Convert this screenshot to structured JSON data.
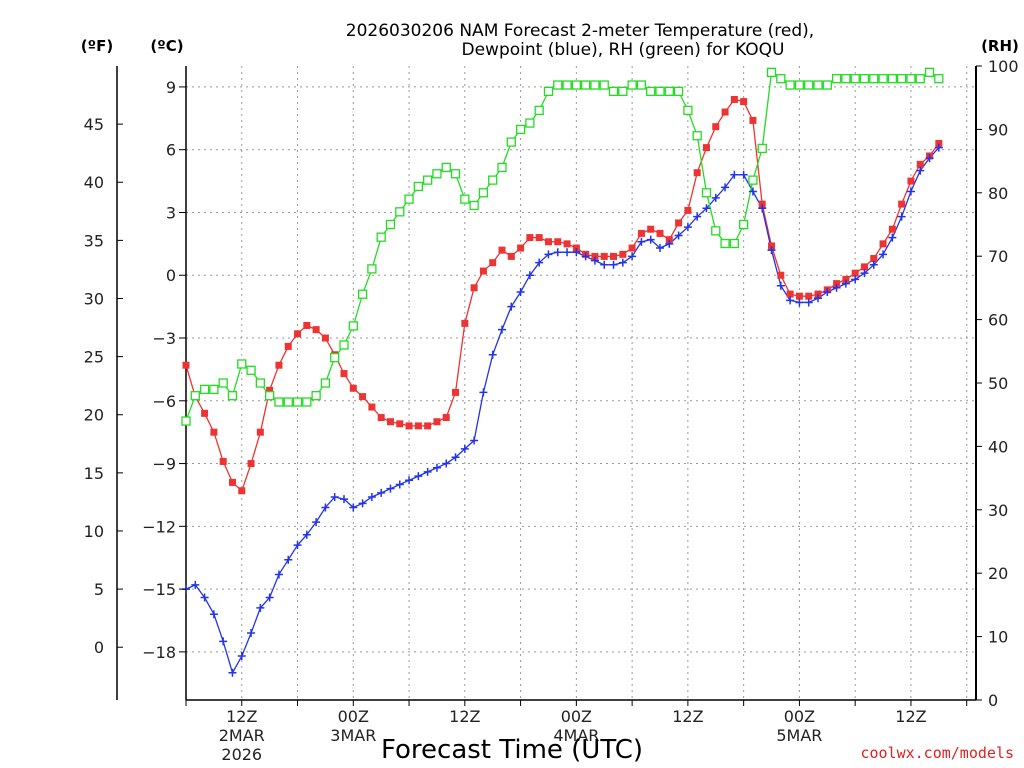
{
  "chart_data": {
    "type": "line",
    "title_line1": "2026030206 NAM Forecast 2-meter Temperature (red),",
    "title_line2": "Dewpoint (blue), RH (green) for KOQU",
    "xlabel": "Forecast Time (UTC)",
    "credit": "coolwx.com/models",
    "unit_labels": {
      "fahrenheit": "(ºF)",
      "celsius": "(ºC)",
      "rh": "(RH)"
    },
    "x_range_hours": [
      0,
      85
    ],
    "celsius_range": [
      -20.3,
      10
    ],
    "rh_range": [
      0,
      100
    ],
    "celsius_ticks": [
      "9",
      "6",
      "3",
      "0",
      "−3",
      "−6",
      "−9",
      "−12",
      "−15",
      "−18"
    ],
    "celsius_tick_values": [
      9,
      6,
      3,
      0,
      -3,
      -6,
      -9,
      -12,
      -15,
      -18
    ],
    "fahrenheit_ticks": [
      "45",
      "40",
      "35",
      "30",
      "25",
      "20",
      "15",
      "10",
      "5",
      "0"
    ],
    "fahrenheit_tick_values": [
      45,
      40,
      35,
      30,
      25,
      20,
      15,
      10,
      5,
      0
    ],
    "rh_ticks": [
      "100",
      "90",
      "80",
      "70",
      "60",
      "50",
      "40",
      "30",
      "20",
      "10",
      "0"
    ],
    "rh_tick_values": [
      100,
      90,
      80,
      70,
      60,
      50,
      40,
      30,
      20,
      10,
      0
    ],
    "x_ticks": [
      {
        "hour": 6,
        "label": "12Z",
        "sub1": "2MAR",
        "sub2": "2026"
      },
      {
        "hour": 18,
        "label": "00Z",
        "sub1": "3MAR",
        "sub2": ""
      },
      {
        "hour": 30,
        "label": "12Z",
        "sub1": "",
        "sub2": ""
      },
      {
        "hour": 42,
        "label": "00Z",
        "sub1": "4MAR",
        "sub2": ""
      },
      {
        "hour": 54,
        "label": "12Z",
        "sub1": "",
        "sub2": ""
      },
      {
        "hour": 66,
        "label": "00Z",
        "sub1": "5MAR",
        "sub2": ""
      },
      {
        "hour": 78,
        "label": "12Z",
        "sub1": "",
        "sub2": ""
      }
    ],
    "series": [
      {
        "name": "2-meter Temperature",
        "axis": "celsius",
        "color": "#ee3333",
        "marker": "filled-square",
        "values": [
          -4.3,
          -5.8,
          -6.6,
          -7.5,
          -8.9,
          -9.9,
          -10.3,
          -9.0,
          -7.5,
          -5.5,
          -4.3,
          -3.4,
          -2.8,
          -2.4,
          -2.6,
          -3.0,
          -3.8,
          -4.7,
          -5.4,
          -5.8,
          -6.3,
          -6.8,
          -7.0,
          -7.1,
          -7.2,
          -7.2,
          -7.2,
          -7.0,
          -6.8,
          -5.6,
          -2.3,
          -0.6,
          0.2,
          0.6,
          1.2,
          0.9,
          1.3,
          1.8,
          1.8,
          1.6,
          1.6,
          1.5,
          1.3,
          1.0,
          0.9,
          0.9,
          0.9,
          1.0,
          1.3,
          2.0,
          2.2,
          2.0,
          1.7,
          2.5,
          3.1,
          4.9,
          6.1,
          7.1,
          7.8,
          8.4,
          8.3,
          7.4,
          3.4,
          1.4,
          0.0,
          -0.9,
          -1.0,
          -1.0,
          -0.9,
          -0.7,
          -0.4,
          -0.2,
          0.1,
          0.4,
          0.8,
          1.5,
          2.2,
          3.4,
          4.5,
          5.3,
          5.7,
          6.3
        ]
      },
      {
        "name": "Dewpoint",
        "axis": "celsius",
        "color": "#2233ee",
        "marker": "plus",
        "values": [
          -15.0,
          -14.8,
          -15.4,
          -16.2,
          -17.5,
          -19.0,
          -18.2,
          -17.1,
          -15.9,
          -15.4,
          -14.3,
          -13.6,
          -12.9,
          -12.4,
          -11.8,
          -11.1,
          -10.6,
          -10.7,
          -11.1,
          -10.9,
          -10.6,
          -10.4,
          -10.2,
          -10.0,
          -9.8,
          -9.6,
          -9.4,
          -9.2,
          -9.0,
          -8.7,
          -8.3,
          -7.9,
          -5.6,
          -3.8,
          -2.6,
          -1.5,
          -0.8,
          0.0,
          0.6,
          1.0,
          1.1,
          1.1,
          1.1,
          0.9,
          0.7,
          0.5,
          0.5,
          0.6,
          0.9,
          1.6,
          1.7,
          1.3,
          1.5,
          1.9,
          2.3,
          2.8,
          3.2,
          3.7,
          4.2,
          4.8,
          4.8,
          4.0,
          3.2,
          1.2,
          -0.5,
          -1.2,
          -1.3,
          -1.3,
          -1.1,
          -0.8,
          -0.6,
          -0.4,
          -0.2,
          0.1,
          0.5,
          1.0,
          1.8,
          2.8,
          4.0,
          5.0,
          5.6,
          6.1
        ]
      },
      {
        "name": "RH",
        "axis": "rh",
        "color": "#22dd22",
        "marker": "open-square",
        "values": [
          44,
          48,
          49,
          49,
          50,
          48,
          53,
          52,
          50,
          48,
          47,
          47,
          47,
          47,
          48,
          50,
          54,
          56,
          59,
          64,
          68,
          73,
          75,
          77,
          79,
          81,
          82,
          83,
          84,
          83,
          79,
          78,
          80,
          82,
          84,
          88,
          90,
          91,
          93,
          96,
          97,
          97,
          97,
          97,
          97,
          97,
          96,
          96,
          97,
          97,
          96,
          96,
          96,
          96,
          93,
          89,
          80,
          74,
          72,
          72,
          75,
          82,
          87,
          99,
          98,
          97,
          97,
          97,
          97,
          97,
          98,
          98,
          98,
          98,
          98,
          98,
          98,
          98,
          98,
          98,
          99,
          98
        ]
      }
    ]
  }
}
